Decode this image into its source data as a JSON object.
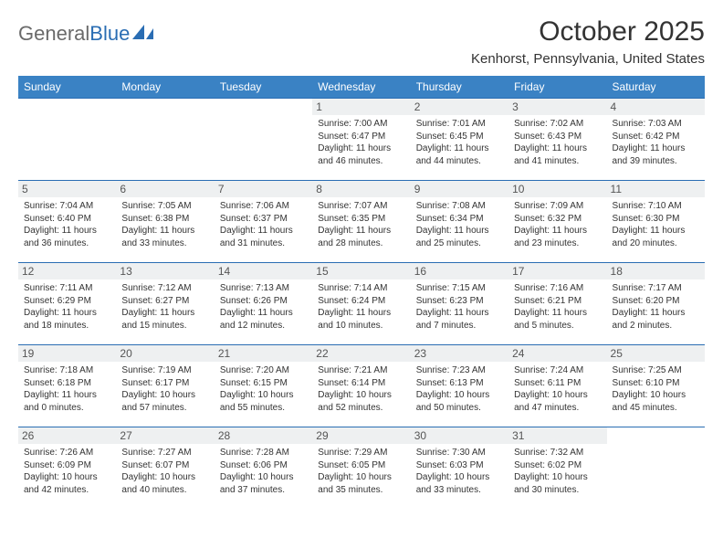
{
  "logo": {
    "general": "General",
    "blue": "Blue"
  },
  "title": "October 2025",
  "location": "Kenhorst, Pennsylvania, United States",
  "colors": {
    "header_bg": "#3a82c4",
    "header_text": "#ffffff",
    "border": "#2a6db3",
    "daynum_bg": "#eef0f1",
    "text": "#333333",
    "logo_gray": "#6a6a6a",
    "logo_blue": "#2a6db3",
    "background": "#ffffff"
  },
  "day_names": [
    "Sunday",
    "Monday",
    "Tuesday",
    "Wednesday",
    "Thursday",
    "Friday",
    "Saturday"
  ],
  "weeks": [
    [
      null,
      null,
      null,
      {
        "n": "1",
        "sr": "Sunrise: 7:00 AM",
        "ss": "Sunset: 6:47 PM",
        "d1": "Daylight: 11 hours",
        "d2": "and 46 minutes."
      },
      {
        "n": "2",
        "sr": "Sunrise: 7:01 AM",
        "ss": "Sunset: 6:45 PM",
        "d1": "Daylight: 11 hours",
        "d2": "and 44 minutes."
      },
      {
        "n": "3",
        "sr": "Sunrise: 7:02 AM",
        "ss": "Sunset: 6:43 PM",
        "d1": "Daylight: 11 hours",
        "d2": "and 41 minutes."
      },
      {
        "n": "4",
        "sr": "Sunrise: 7:03 AM",
        "ss": "Sunset: 6:42 PM",
        "d1": "Daylight: 11 hours",
        "d2": "and 39 minutes."
      }
    ],
    [
      {
        "n": "5",
        "sr": "Sunrise: 7:04 AM",
        "ss": "Sunset: 6:40 PM",
        "d1": "Daylight: 11 hours",
        "d2": "and 36 minutes."
      },
      {
        "n": "6",
        "sr": "Sunrise: 7:05 AM",
        "ss": "Sunset: 6:38 PM",
        "d1": "Daylight: 11 hours",
        "d2": "and 33 minutes."
      },
      {
        "n": "7",
        "sr": "Sunrise: 7:06 AM",
        "ss": "Sunset: 6:37 PM",
        "d1": "Daylight: 11 hours",
        "d2": "and 31 minutes."
      },
      {
        "n": "8",
        "sr": "Sunrise: 7:07 AM",
        "ss": "Sunset: 6:35 PM",
        "d1": "Daylight: 11 hours",
        "d2": "and 28 minutes."
      },
      {
        "n": "9",
        "sr": "Sunrise: 7:08 AM",
        "ss": "Sunset: 6:34 PM",
        "d1": "Daylight: 11 hours",
        "d2": "and 25 minutes."
      },
      {
        "n": "10",
        "sr": "Sunrise: 7:09 AM",
        "ss": "Sunset: 6:32 PM",
        "d1": "Daylight: 11 hours",
        "d2": "and 23 minutes."
      },
      {
        "n": "11",
        "sr": "Sunrise: 7:10 AM",
        "ss": "Sunset: 6:30 PM",
        "d1": "Daylight: 11 hours",
        "d2": "and 20 minutes."
      }
    ],
    [
      {
        "n": "12",
        "sr": "Sunrise: 7:11 AM",
        "ss": "Sunset: 6:29 PM",
        "d1": "Daylight: 11 hours",
        "d2": "and 18 minutes."
      },
      {
        "n": "13",
        "sr": "Sunrise: 7:12 AM",
        "ss": "Sunset: 6:27 PM",
        "d1": "Daylight: 11 hours",
        "d2": "and 15 minutes."
      },
      {
        "n": "14",
        "sr": "Sunrise: 7:13 AM",
        "ss": "Sunset: 6:26 PM",
        "d1": "Daylight: 11 hours",
        "d2": "and 12 minutes."
      },
      {
        "n": "15",
        "sr": "Sunrise: 7:14 AM",
        "ss": "Sunset: 6:24 PM",
        "d1": "Daylight: 11 hours",
        "d2": "and 10 minutes."
      },
      {
        "n": "16",
        "sr": "Sunrise: 7:15 AM",
        "ss": "Sunset: 6:23 PM",
        "d1": "Daylight: 11 hours",
        "d2": "and 7 minutes."
      },
      {
        "n": "17",
        "sr": "Sunrise: 7:16 AM",
        "ss": "Sunset: 6:21 PM",
        "d1": "Daylight: 11 hours",
        "d2": "and 5 minutes."
      },
      {
        "n": "18",
        "sr": "Sunrise: 7:17 AM",
        "ss": "Sunset: 6:20 PM",
        "d1": "Daylight: 11 hours",
        "d2": "and 2 minutes."
      }
    ],
    [
      {
        "n": "19",
        "sr": "Sunrise: 7:18 AM",
        "ss": "Sunset: 6:18 PM",
        "d1": "Daylight: 11 hours",
        "d2": "and 0 minutes."
      },
      {
        "n": "20",
        "sr": "Sunrise: 7:19 AM",
        "ss": "Sunset: 6:17 PM",
        "d1": "Daylight: 10 hours",
        "d2": "and 57 minutes."
      },
      {
        "n": "21",
        "sr": "Sunrise: 7:20 AM",
        "ss": "Sunset: 6:15 PM",
        "d1": "Daylight: 10 hours",
        "d2": "and 55 minutes."
      },
      {
        "n": "22",
        "sr": "Sunrise: 7:21 AM",
        "ss": "Sunset: 6:14 PM",
        "d1": "Daylight: 10 hours",
        "d2": "and 52 minutes."
      },
      {
        "n": "23",
        "sr": "Sunrise: 7:23 AM",
        "ss": "Sunset: 6:13 PM",
        "d1": "Daylight: 10 hours",
        "d2": "and 50 minutes."
      },
      {
        "n": "24",
        "sr": "Sunrise: 7:24 AM",
        "ss": "Sunset: 6:11 PM",
        "d1": "Daylight: 10 hours",
        "d2": "and 47 minutes."
      },
      {
        "n": "25",
        "sr": "Sunrise: 7:25 AM",
        "ss": "Sunset: 6:10 PM",
        "d1": "Daylight: 10 hours",
        "d2": "and 45 minutes."
      }
    ],
    [
      {
        "n": "26",
        "sr": "Sunrise: 7:26 AM",
        "ss": "Sunset: 6:09 PM",
        "d1": "Daylight: 10 hours",
        "d2": "and 42 minutes."
      },
      {
        "n": "27",
        "sr": "Sunrise: 7:27 AM",
        "ss": "Sunset: 6:07 PM",
        "d1": "Daylight: 10 hours",
        "d2": "and 40 minutes."
      },
      {
        "n": "28",
        "sr": "Sunrise: 7:28 AM",
        "ss": "Sunset: 6:06 PM",
        "d1": "Daylight: 10 hours",
        "d2": "and 37 minutes."
      },
      {
        "n": "29",
        "sr": "Sunrise: 7:29 AM",
        "ss": "Sunset: 6:05 PM",
        "d1": "Daylight: 10 hours",
        "d2": "and 35 minutes."
      },
      {
        "n": "30",
        "sr": "Sunrise: 7:30 AM",
        "ss": "Sunset: 6:03 PM",
        "d1": "Daylight: 10 hours",
        "d2": "and 33 minutes."
      },
      {
        "n": "31",
        "sr": "Sunrise: 7:32 AM",
        "ss": "Sunset: 6:02 PM",
        "d1": "Daylight: 10 hours",
        "d2": "and 30 minutes."
      },
      null
    ]
  ]
}
